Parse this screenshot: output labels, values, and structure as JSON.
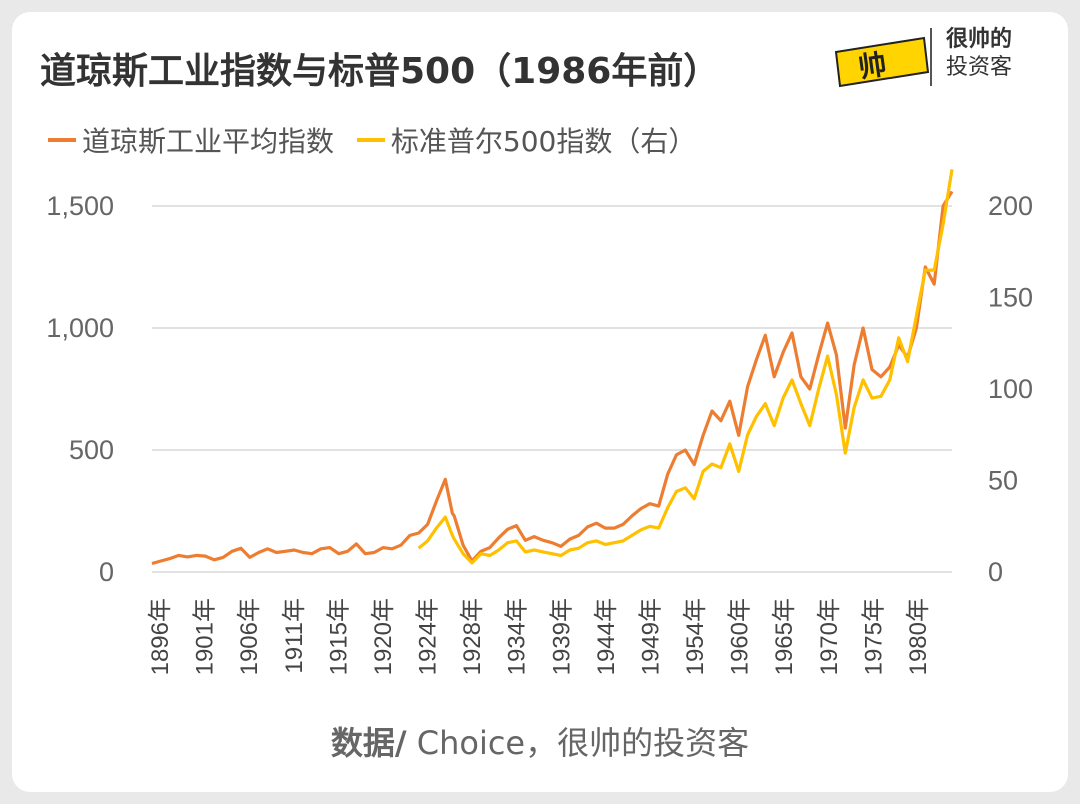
{
  "title": "道琼斯工业指数与标普500（1986年前）",
  "logo": {
    "badge_text": "帅",
    "line1": "很帅的",
    "line2": "投资客"
  },
  "colors": {
    "dow": "#ED7D31",
    "sp500": "#FFC000",
    "grid": "#d9d9d9"
  },
  "source": {
    "bold": "数据/",
    "rest": " Choice，很帅的投资客"
  },
  "chart_data": {
    "type": "line",
    "title": "道琼斯工业指数与标普500（1986年前）",
    "x_tick_labels": [
      "1896年",
      "1901年",
      "1906年",
      "1911年",
      "1915年",
      "1920年",
      "1924年",
      "1928年",
      "1934年",
      "1939年",
      "1944年",
      "1949年",
      "1954年",
      "1960年",
      "1965年",
      "1970年",
      "1975年",
      "1980年"
    ],
    "x_range": [
      1896,
      1986
    ],
    "y_left": {
      "ticks": [
        "0",
        "500",
        "1,000",
        "1,500"
      ],
      "range": [
        0,
        1500
      ]
    },
    "y_right": {
      "ticks": [
        "0",
        "50",
        "100",
        "150",
        "200"
      ],
      "range": [
        0,
        200
      ]
    },
    "grid": "horizontal",
    "legend_position": "top-left",
    "series": [
      {
        "name": "道琼斯工业平均指数",
        "axis": "left",
        "points": [
          [
            1896,
            35
          ],
          [
            1897,
            45
          ],
          [
            1898,
            55
          ],
          [
            1899,
            68
          ],
          [
            1900,
            62
          ],
          [
            1901,
            68
          ],
          [
            1902,
            65
          ],
          [
            1903,
            50
          ],
          [
            1904,
            60
          ],
          [
            1905,
            85
          ],
          [
            1906,
            97
          ],
          [
            1907,
            60
          ],
          [
            1908,
            80
          ],
          [
            1909,
            95
          ],
          [
            1910,
            80
          ],
          [
            1911,
            85
          ],
          [
            1912,
            90
          ],
          [
            1913,
            80
          ],
          [
            1914,
            75
          ],
          [
            1915,
            95
          ],
          [
            1916,
            100
          ],
          [
            1917,
            75
          ],
          [
            1918,
            85
          ],
          [
            1919,
            115
          ],
          [
            1920,
            75
          ],
          [
            1921,
            80
          ],
          [
            1922,
            100
          ],
          [
            1923,
            95
          ],
          [
            1924,
            110
          ],
          [
            1925,
            150
          ],
          [
            1926,
            160
          ],
          [
            1927,
            195
          ],
          [
            1928,
            290
          ],
          [
            1929,
            380
          ],
          [
            1929.8,
            240
          ],
          [
            1930,
            230
          ],
          [
            1931,
            110
          ],
          [
            1932,
            45
          ],
          [
            1933,
            85
          ],
          [
            1934,
            100
          ],
          [
            1935,
            140
          ],
          [
            1936,
            175
          ],
          [
            1937,
            190
          ],
          [
            1938,
            130
          ],
          [
            1939,
            145
          ],
          [
            1940,
            130
          ],
          [
            1941,
            120
          ],
          [
            1942,
            105
          ],
          [
            1943,
            135
          ],
          [
            1944,
            150
          ],
          [
            1945,
            185
          ],
          [
            1946,
            200
          ],
          [
            1947,
            180
          ],
          [
            1948,
            180
          ],
          [
            1949,
            195
          ],
          [
            1950,
            230
          ],
          [
            1951,
            260
          ],
          [
            1952,
            280
          ],
          [
            1953,
            270
          ],
          [
            1954,
            400
          ],
          [
            1955,
            480
          ],
          [
            1956,
            500
          ],
          [
            1957,
            440
          ],
          [
            1958,
            560
          ],
          [
            1959,
            660
          ],
          [
            1960,
            620
          ],
          [
            1961,
            700
          ],
          [
            1962,
            560
          ],
          [
            1963,
            760
          ],
          [
            1964,
            870
          ],
          [
            1965,
            970
          ],
          [
            1966,
            800
          ],
          [
            1967,
            900
          ],
          [
            1968,
            980
          ],
          [
            1969,
            800
          ],
          [
            1970,
            750
          ],
          [
            1971,
            890
          ],
          [
            1972,
            1020
          ],
          [
            1973,
            890
          ],
          [
            1974,
            590
          ],
          [
            1975,
            850
          ],
          [
            1976,
            1000
          ],
          [
            1977,
            830
          ],
          [
            1978,
            800
          ],
          [
            1979,
            840
          ],
          [
            1980,
            930
          ],
          [
            1981,
            880
          ],
          [
            1982,
            1000
          ],
          [
            1983,
            1250
          ],
          [
            1984,
            1180
          ],
          [
            1985,
            1500
          ],
          [
            1986,
            1560
          ]
        ]
      },
      {
        "name": "标准普尔500指数（右）",
        "axis": "right",
        "points": [
          [
            1926,
            13
          ],
          [
            1927,
            17
          ],
          [
            1928,
            24
          ],
          [
            1929,
            30
          ],
          [
            1929.8,
            20
          ],
          [
            1930,
            18
          ],
          [
            1931,
            10
          ],
          [
            1932,
            5
          ],
          [
            1933,
            10
          ],
          [
            1934,
            9
          ],
          [
            1935,
            12
          ],
          [
            1936,
            16
          ],
          [
            1937,
            17
          ],
          [
            1938,
            11
          ],
          [
            1939,
            12
          ],
          [
            1940,
            11
          ],
          [
            1941,
            10
          ],
          [
            1942,
            9
          ],
          [
            1943,
            12
          ],
          [
            1944,
            13
          ],
          [
            1945,
            16
          ],
          [
            1946,
            17
          ],
          [
            1947,
            15
          ],
          [
            1948,
            16
          ],
          [
            1949,
            17
          ],
          [
            1950,
            20
          ],
          [
            1951,
            23
          ],
          [
            1952,
            25
          ],
          [
            1953,
            24
          ],
          [
            1954,
            35
          ],
          [
            1955,
            44
          ],
          [
            1956,
            46
          ],
          [
            1957,
            40
          ],
          [
            1958,
            55
          ],
          [
            1959,
            59
          ],
          [
            1960,
            57
          ],
          [
            1961,
            70
          ],
          [
            1962,
            55
          ],
          [
            1963,
            75
          ],
          [
            1964,
            85
          ],
          [
            1965,
            92
          ],
          [
            1966,
            80
          ],
          [
            1967,
            95
          ],
          [
            1968,
            105
          ],
          [
            1969,
            92
          ],
          [
            1970,
            80
          ],
          [
            1971,
            100
          ],
          [
            1972,
            118
          ],
          [
            1973,
            97
          ],
          [
            1974,
            65
          ],
          [
            1975,
            90
          ],
          [
            1976,
            105
          ],
          [
            1977,
            95
          ],
          [
            1978,
            96
          ],
          [
            1979,
            105
          ],
          [
            1980,
            128
          ],
          [
            1981,
            115
          ],
          [
            1982,
            140
          ],
          [
            1983,
            165
          ],
          [
            1984,
            165
          ],
          [
            1985,
            190
          ],
          [
            1986,
            220
          ]
        ]
      }
    ]
  },
  "legend": [
    {
      "label": "道琼斯工业平均指数",
      "color": "#ED7D31"
    },
    {
      "label": "标准普尔500指数（右）",
      "color": "#FFC000"
    }
  ]
}
